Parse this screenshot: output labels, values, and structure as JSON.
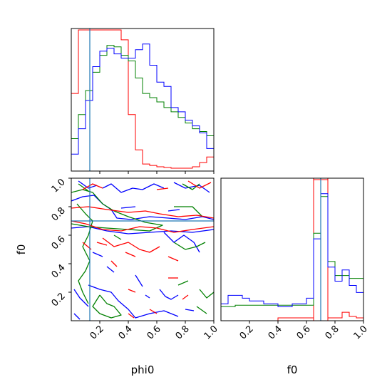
{
  "chart_data": [
    {
      "type": "histogram",
      "panel": "phi0 marginal",
      "xlim": [
        0,
        1
      ],
      "bins": [
        0.0,
        0.05,
        0.1,
        0.15,
        0.2,
        0.25,
        0.3,
        0.35,
        0.4,
        0.45,
        0.5,
        0.55,
        0.6,
        0.65,
        0.7,
        0.75,
        0.8,
        0.85,
        0.9,
        0.95,
        1.0
      ],
      "series": [
        {
          "color": "#ff0000",
          "values": [
            0.55,
            1.0,
            1.0,
            1.0,
            1.0,
            1.0,
            1.0,
            0.93,
            0.4,
            0.15,
            0.05,
            0.04,
            0.03,
            0.025,
            0.02,
            0.02,
            0.02,
            0.03,
            0.06,
            0.1
          ]
        },
        {
          "color": "#008000",
          "values": [
            0.23,
            0.4,
            0.57,
            0.7,
            0.82,
            0.89,
            0.88,
            0.82,
            0.78,
            0.66,
            0.55,
            0.52,
            0.49,
            0.45,
            0.42,
            0.38,
            0.34,
            0.3,
            0.28,
            0.25
          ]
        },
        {
          "color": "#0000ff",
          "values": [
            0.12,
            0.3,
            0.5,
            0.74,
            0.85,
            0.87,
            0.83,
            0.8,
            0.8,
            0.86,
            0.9,
            0.75,
            0.63,
            0.6,
            0.45,
            0.42,
            0.36,
            0.32,
            0.27,
            0.16
          ]
        }
      ],
      "truth": 0.13,
      "truth_color": "#1f77b4"
    },
    {
      "type": "contour",
      "panel": "phi0 vs f0",
      "xlim": [
        0,
        1
      ],
      "ylim": [
        0,
        1
      ],
      "truth_x": 0.13,
      "truth_y": 0.7,
      "truth_color": "#1f77b4",
      "series": [
        {
          "color": "#0000ff",
          "paths": [
            [
              [
                0.0,
                0.84
              ],
              [
                0.08,
                0.87
              ],
              [
                0.16,
                0.88
              ],
              [
                0.22,
                0.82
              ],
              [
                0.28,
                0.78
              ],
              [
                0.32,
                0.72
              ],
              [
                0.42,
                0.71
              ],
              [
                0.55,
                0.73
              ],
              [
                0.68,
                0.72
              ],
              [
                0.8,
                0.71
              ],
              [
                0.92,
                0.73
              ],
              [
                1.0,
                0.71
              ]
            ],
            [
              [
                0.0,
                0.65
              ],
              [
                0.12,
                0.66
              ],
              [
                0.25,
                0.63
              ],
              [
                0.4,
                0.61
              ],
              [
                0.55,
                0.62
              ],
              [
                0.7,
                0.63
              ],
              [
                0.85,
                0.62
              ],
              [
                1.0,
                0.64
              ]
            ],
            [
              [
                0.05,
                0.98
              ],
              [
                0.12,
                0.93
              ],
              [
                0.18,
                0.95
              ]
            ],
            [
              [
                0.22,
                0.93
              ],
              [
                0.28,
                0.96
              ],
              [
                0.35,
                0.9
              ],
              [
                0.43,
                0.93
              ],
              [
                0.5,
                0.92
              ],
              [
                0.58,
                0.96
              ],
              [
                0.65,
                0.93
              ]
            ],
            [
              [
                0.72,
                0.97
              ],
              [
                0.8,
                0.93
              ],
              [
                0.9,
                0.95
              ],
              [
                0.97,
                0.9
              ]
            ],
            [
              [
                0.65,
                0.62
              ],
              [
                0.72,
                0.55
              ],
              [
                0.79,
                0.6
              ],
              [
                0.86,
                0.55
              ],
              [
                0.9,
                0.48
              ]
            ],
            [
              [
                0.35,
                0.79
              ],
              [
                0.45,
                0.8
              ]
            ],
            [
              [
                0.68,
                0.77
              ],
              [
                0.76,
                0.78
              ]
            ],
            [
              [
                0.15,
                0.48
              ],
              [
                0.22,
                0.45
              ]
            ],
            [
              [
                0.25,
                0.38
              ],
              [
                0.3,
                0.34
              ]
            ],
            [
              [
                0.12,
                0.25
              ],
              [
                0.2,
                0.22
              ],
              [
                0.28,
                0.2
              ],
              [
                0.33,
                0.14
              ],
              [
                0.4,
                0.08
              ],
              [
                0.45,
                0.02
              ],
              [
                0.55,
                0.05
              ],
              [
                0.65,
                0.07
              ],
              [
                0.75,
                0.03
              ]
            ],
            [
              [
                0.62,
                0.22
              ],
              [
                0.66,
                0.17
              ],
              [
                0.7,
                0.15
              ],
              [
                0.75,
                0.18
              ]
            ],
            [
              [
                0.45,
                0.32
              ],
              [
                0.5,
                0.24
              ]
            ],
            [
              [
                0.52,
                0.18
              ],
              [
                0.55,
                0.16
              ]
            ],
            [
              [
                0.02,
                0.22
              ],
              [
                0.06,
                0.16
              ],
              [
                0.12,
                0.1
              ]
            ],
            [
              [
                0.8,
                0.08
              ],
              [
                0.86,
                0.07
              ]
            ],
            [
              [
                0.02,
                0.05
              ],
              [
                0.06,
                0.01
              ]
            ]
          ]
        },
        {
          "color": "#008000",
          "paths": [
            [
              [
                0.0,
                0.9
              ],
              [
                0.08,
                0.92
              ],
              [
                0.15,
                0.9
              ],
              [
                0.22,
                0.82
              ],
              [
                0.3,
                0.77
              ],
              [
                0.4,
                0.73
              ],
              [
                0.52,
                0.69
              ],
              [
                0.64,
                0.67
              ],
              [
                0.55,
                0.63
              ],
              [
                0.4,
                0.64
              ],
              [
                0.25,
                0.65
              ],
              [
                0.12,
                0.66
              ],
              [
                0.0,
                0.68
              ]
            ],
            [
              [
                0.04,
                0.82
              ],
              [
                0.1,
                0.75
              ],
              [
                0.15,
                0.7
              ],
              [
                0.12,
                0.6
              ],
              [
                0.08,
                0.52
              ],
              [
                0.13,
                0.42
              ],
              [
                0.1,
                0.35
              ],
              [
                0.05,
                0.28
              ],
              [
                0.08,
                0.2
              ],
              [
                0.12,
                0.12
              ]
            ],
            [
              [
                0.2,
                0.18
              ],
              [
                0.25,
                0.12
              ],
              [
                0.3,
                0.1
              ],
              [
                0.35,
                0.04
              ],
              [
                0.28,
                0.02
              ],
              [
                0.2,
                0.05
              ],
              [
                0.15,
                0.1
              ],
              [
                0.2,
                0.18
              ]
            ],
            [
              [
                0.78,
                0.96
              ],
              [
                0.85,
                0.92
              ],
              [
                0.9,
                0.96
              ]
            ],
            [
              [
                0.72,
                0.8
              ],
              [
                0.85,
                0.8
              ],
              [
                0.92,
                0.73
              ]
            ],
            [
              [
                0.72,
                0.55
              ],
              [
                0.8,
                0.5
              ],
              [
                0.88,
                0.52
              ],
              [
                0.94,
                0.55
              ]
            ],
            [
              [
                0.75,
                0.25
              ],
              [
                0.82,
                0.28
              ]
            ],
            [
              [
                0.9,
                0.22
              ],
              [
                0.95,
                0.16
              ],
              [
                1.0,
                0.2
              ]
            ],
            [
              [
                0.88,
                0.1
              ],
              [
                0.95,
                0.05
              ]
            ],
            [
              [
                0.05,
                0.96
              ],
              [
                0.12,
                0.91
              ]
            ],
            [
              [
                0.3,
                0.6
              ],
              [
                0.35,
                0.57
              ]
            ]
          ]
        },
        {
          "color": "#ff0000",
          "paths": [
            [
              [
                0.0,
                0.79
              ],
              [
                0.12,
                0.8
              ],
              [
                0.25,
                0.78
              ],
              [
                0.4,
                0.76
              ],
              [
                0.52,
                0.77
              ],
              [
                0.62,
                0.75
              ],
              [
                0.75,
                0.73
              ],
              [
                0.88,
                0.74
              ],
              [
                1.0,
                0.72
              ]
            ],
            [
              [
                0.0,
                0.7
              ],
              [
                0.1,
                0.68
              ],
              [
                0.22,
                0.64
              ],
              [
                0.35,
                0.63
              ],
              [
                0.48,
                0.66
              ],
              [
                0.6,
                0.65
              ],
              [
                0.72,
                0.62
              ],
              [
                0.85,
                0.64
              ],
              [
                1.0,
                0.66
              ]
            ],
            [
              [
                0.22,
                0.58
              ],
              [
                0.3,
                0.52
              ],
              [
                0.4,
                0.55
              ],
              [
                0.48,
                0.5
              ],
              [
                0.55,
                0.48
              ],
              [
                0.62,
                0.52
              ]
            ],
            [
              [
                0.18,
                0.55
              ],
              [
                0.25,
                0.53
              ]
            ],
            [
              [
                0.08,
                0.92
              ],
              [
                0.15,
                0.96
              ],
              [
                0.22,
                0.93
              ]
            ],
            [
              [
                0.82,
                0.98
              ],
              [
                0.9,
                0.93
              ],
              [
                0.98,
                0.97
              ]
            ],
            [
              [
                0.6,
                0.92
              ],
              [
                0.68,
                0.93
              ]
            ],
            [
              [
                0.38,
                0.48
              ],
              [
                0.45,
                0.45
              ]
            ],
            [
              [
                0.68,
                0.45
              ],
              [
                0.75,
                0.42
              ]
            ],
            [
              [
                0.68,
                0.3
              ],
              [
                0.75,
                0.3
              ]
            ],
            [
              [
                0.4,
                0.22
              ],
              [
                0.45,
                0.2
              ]
            ],
            [
              [
                0.78,
                0.15
              ],
              [
                0.82,
                0.18
              ]
            ],
            [
              [
                0.55,
                0.08
              ],
              [
                0.6,
                0.05
              ]
            ],
            [
              [
                0.08,
                0.55
              ],
              [
                0.14,
                0.5
              ]
            ],
            [
              [
                0.28,
                0.42
              ],
              [
                0.32,
                0.38
              ]
            ],
            [
              [
                0.4,
                0.05
              ],
              [
                0.44,
                0.02
              ]
            ]
          ]
        }
      ],
      "xticks": [
        "0.2",
        "0.4",
        "0.6",
        "0.8",
        "1.0"
      ],
      "yticks": [
        "0.2",
        "0.4",
        "0.6",
        "0.8",
        "1.0"
      ],
      "xlabel": "phi0",
      "ylabel": "f0"
    },
    {
      "type": "histogram",
      "panel": "f0 marginal",
      "xlim": [
        0,
        1
      ],
      "bins": [
        0.0,
        0.05,
        0.1,
        0.15,
        0.2,
        0.25,
        0.3,
        0.35,
        0.4,
        0.45,
        0.5,
        0.55,
        0.6,
        0.65,
        0.7,
        0.75,
        0.8,
        0.85,
        0.9,
        0.95,
        1.0
      ],
      "series": [
        {
          "color": "#ff0000",
          "values": [
            0,
            0,
            0,
            0,
            0,
            0,
            0,
            0,
            0.02,
            0.02,
            0.02,
            0.02,
            0.02,
            1.0,
            1.0,
            0.02,
            0.02,
            0.06,
            0.03,
            0.02
          ]
        },
        {
          "color": "#008000",
          "values": [
            0.1,
            0.1,
            0.11,
            0.11,
            0.11,
            0.11,
            0.11,
            0.11,
            0.11,
            0.11,
            0.11,
            0.11,
            0.11,
            0.62,
            0.88,
            0.42,
            0.32,
            0.32,
            0.3,
            0.3
          ]
        },
        {
          "color": "#0000ff",
          "values": [
            0.12,
            0.18,
            0.18,
            0.16,
            0.14,
            0.14,
            0.12,
            0.12,
            0.1,
            0.1,
            0.12,
            0.12,
            0.16,
            0.58,
            0.9,
            0.38,
            0.28,
            0.36,
            0.25,
            0.2
          ]
        }
      ],
      "truth": 0.7,
      "truth_color": "#1f77b4",
      "red_band": [
        0.65,
        0.75
      ],
      "xticks": [
        "0.2",
        "0.4",
        "0.6",
        "0.8",
        "1.0"
      ],
      "xlabel": "f0"
    }
  ]
}
